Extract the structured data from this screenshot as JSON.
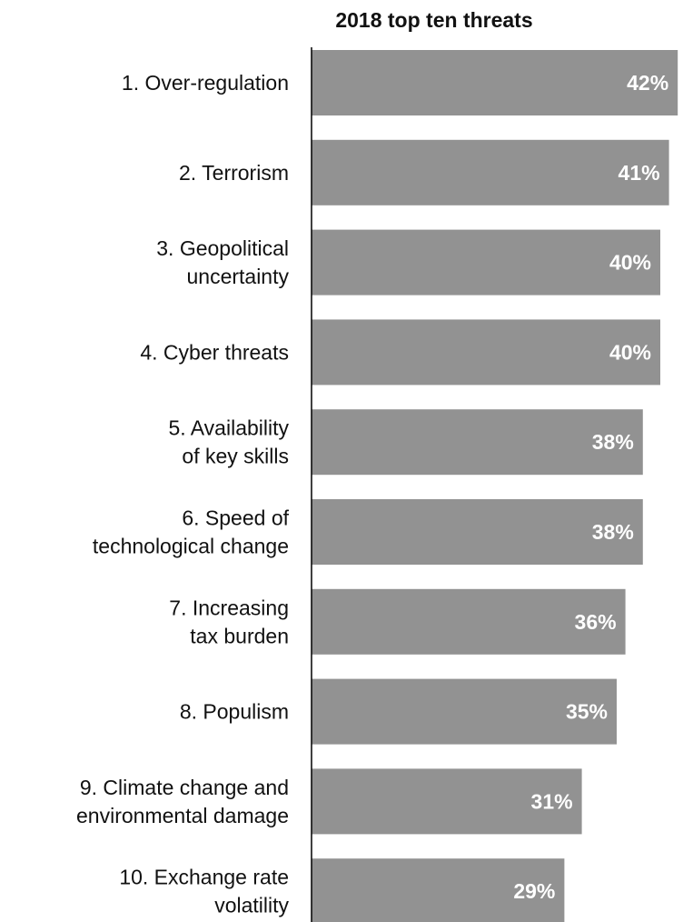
{
  "chart_data": {
    "type": "bar",
    "orientation": "horizontal",
    "title": "2018 top ten threats",
    "categories": [
      [
        "1. Over-regulation"
      ],
      [
        "2. Terrorism"
      ],
      [
        "3. Geopolitical",
        "uncertainty"
      ],
      [
        "4. Cyber threats"
      ],
      [
        "5. Availability",
        "of key skills"
      ],
      [
        "6. Speed of",
        "technological change"
      ],
      [
        "7. Increasing",
        "tax burden"
      ],
      [
        "8. Populism"
      ],
      [
        "9. Climate change and",
        "environmental damage"
      ],
      [
        "10. Exchange rate",
        "volatility"
      ]
    ],
    "values": [
      42,
      41,
      40,
      40,
      38,
      38,
      36,
      35,
      31,
      29
    ],
    "value_labels": [
      "42%",
      "41%",
      "40%",
      "40%",
      "38%",
      "38%",
      "36%",
      "35%",
      "31%",
      "29%"
    ],
    "unit": "%",
    "xlabel": "",
    "ylabel": "",
    "grid": false,
    "legend": "none",
    "bar_color": "#929292",
    "axis_color": "#000000",
    "label_color": "#ffffff"
  }
}
